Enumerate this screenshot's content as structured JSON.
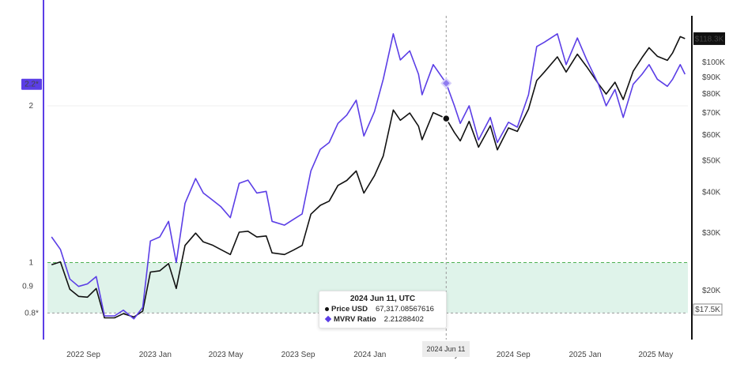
{
  "chart_data": {
    "type": "line",
    "x_ticks": [
      "2022 Sep",
      "2023 Jan",
      "2023 May",
      "2023 Sep",
      "2024 Jan",
      "2024 May",
      "2024 Jun 11",
      "2024 Sep",
      "2025 Jan",
      "2025 May"
    ],
    "left_axis": {
      "scale": "log",
      "ticks": [
        "2",
        "1",
        "0.9"
      ],
      "highlight_labels": [
        "2.2*",
        "0.8*"
      ],
      "highlight_colors": [
        "#5b3ee6",
        "#ffffff"
      ]
    },
    "right_axis": {
      "scale": "log",
      "ticks": [
        "$100K",
        "$90K",
        "$80K",
        "$70K",
        "$60K",
        "$50K",
        "$40K",
        "$30K",
        "$20K"
      ],
      "highlight_labels": [
        "$118.3K",
        "$17.5K"
      ]
    },
    "threshold_band": {
      "from": 0.8,
      "to": 1.0,
      "color": "#dff3ea",
      "line_color": "#4caf50"
    },
    "series": [
      {
        "axis": "right",
        "color": "#111111",
        "x": [
          "2022-08-10",
          "2022-08-25",
          "2022-09-10",
          "2022-09-25",
          "2022-10-10",
          "2022-10-25",
          "2022-11-08",
          "2022-11-25",
          "2022-12-10",
          "2022-12-28",
          "2023-01-12",
          "2023-01-25",
          "2023-02-10",
          "2023-02-25",
          "2023-03-10",
          "2023-03-25",
          "2023-04-12",
          "2023-04-25",
          "2023-05-10",
          "2023-05-25",
          "2023-06-10",
          "2023-06-25",
          "2023-07-10",
          "2023-07-25",
          "2023-08-10",
          "2023-08-20",
          "2023-09-10",
          "2023-09-25",
          "2023-10-10",
          "2023-10-25",
          "2023-11-10",
          "2023-11-25",
          "2023-12-10",
          "2023-12-25",
          "2024-01-10",
          "2024-01-23",
          "2024-02-10",
          "2024-02-25",
          "2024-03-13",
          "2024-03-25",
          "2024-04-10",
          "2024-04-25",
          "2024-05-01",
          "2024-05-20",
          "2024-06-11",
          "2024-06-25",
          "2024-07-05",
          "2024-07-20",
          "2024-08-05",
          "2024-08-25",
          "2024-09-06",
          "2024-09-25",
          "2024-10-10",
          "2024-10-29",
          "2024-11-12",
          "2024-11-25",
          "2024-12-17",
          "2025-01-01",
          "2025-01-20",
          "2025-02-05",
          "2025-02-25",
          "2025-03-10",
          "2025-03-25",
          "2025-04-08",
          "2025-04-25",
          "2025-05-10",
          "2025-05-22",
          "2025-06-05",
          "2025-06-22",
          "2025-07-01",
          "2025-07-14",
          "2025-07-22"
        ],
        "values": [
          24000,
          24500,
          20200,
          19200,
          19100,
          20300,
          16500,
          16500,
          17000,
          16600,
          17300,
          22800,
          23000,
          24200,
          20300,
          27500,
          30000,
          28200,
          27600,
          26700,
          25800,
          30200,
          30400,
          29200,
          29400,
          26100,
          25800,
          26600,
          27500,
          34300,
          36500,
          37600,
          42000,
          43500,
          46500,
          39800,
          45000,
          51700,
          71500,
          66500,
          70000,
          63800,
          58000,
          70200,
          67317,
          61000,
          57500,
          66000,
          55000,
          64000,
          54000,
          63000,
          61500,
          72000,
          88000,
          93500,
          104000,
          93500,
          106000,
          97000,
          86000,
          80000,
          87000,
          77000,
          94000,
          103500,
          111000,
          104500,
          101500,
          107000,
          120000,
          118300
        ]
      },
      {
        "axis": "left",
        "color": "#5b3ee6",
        "x": [
          "2022-08-10",
          "2022-08-25",
          "2022-09-10",
          "2022-09-25",
          "2022-10-10",
          "2022-10-25",
          "2022-11-08",
          "2022-11-25",
          "2022-12-10",
          "2022-12-28",
          "2023-01-12",
          "2023-01-25",
          "2023-02-10",
          "2023-02-25",
          "2023-03-10",
          "2023-03-25",
          "2023-04-12",
          "2023-04-25",
          "2023-05-10",
          "2023-05-25",
          "2023-06-10",
          "2023-06-25",
          "2023-07-10",
          "2023-07-25",
          "2023-08-10",
          "2023-08-20",
          "2023-09-10",
          "2023-09-25",
          "2023-10-10",
          "2023-10-25",
          "2023-11-10",
          "2023-11-25",
          "2023-12-10",
          "2023-12-25",
          "2024-01-10",
          "2024-01-23",
          "2024-02-10",
          "2024-02-25",
          "2024-03-13",
          "2024-03-25",
          "2024-04-10",
          "2024-04-25",
          "2024-05-01",
          "2024-05-20",
          "2024-06-11",
          "2024-06-25",
          "2024-07-05",
          "2024-07-20",
          "2024-08-05",
          "2024-08-25",
          "2024-09-06",
          "2024-09-25",
          "2024-10-10",
          "2024-10-29",
          "2024-11-12",
          "2024-11-25",
          "2024-12-17",
          "2025-01-01",
          "2025-01-20",
          "2025-02-05",
          "2025-02-25",
          "2025-03-10",
          "2025-03-25",
          "2025-04-08",
          "2025-04-25",
          "2025-05-10",
          "2025-05-22",
          "2025-06-05",
          "2025-06-22",
          "2025-07-01",
          "2025-07-14",
          "2025-07-22"
        ],
        "values": [
          1.12,
          1.06,
          0.93,
          0.9,
          0.91,
          0.94,
          0.79,
          0.79,
          0.81,
          0.78,
          0.82,
          1.1,
          1.12,
          1.2,
          1.0,
          1.3,
          1.45,
          1.36,
          1.32,
          1.28,
          1.22,
          1.42,
          1.44,
          1.36,
          1.37,
          1.2,
          1.18,
          1.21,
          1.24,
          1.5,
          1.65,
          1.7,
          1.85,
          1.92,
          2.05,
          1.75,
          1.95,
          2.25,
          2.75,
          2.45,
          2.55,
          2.3,
          2.1,
          2.4,
          2.21,
          2.0,
          1.85,
          2.0,
          1.72,
          1.9,
          1.7,
          1.86,
          1.82,
          2.1,
          2.6,
          2.65,
          2.75,
          2.4,
          2.7,
          2.45,
          2.2,
          2.0,
          2.15,
          1.9,
          2.2,
          2.3,
          2.4,
          2.25,
          2.18,
          2.25,
          2.4,
          2.3
        ]
      }
    ],
    "crosshair": {
      "x": "2024-06-11"
    },
    "tooltip": {
      "title": "2024 Jun 11, UTC",
      "rows": [
        {
          "label": "Price USD",
          "value": "67,317.08567616",
          "color": "#111111"
        },
        {
          "label": "MVRV Ratio",
          "value": "2.21288402",
          "color": "#5b3ee6"
        }
      ]
    }
  }
}
